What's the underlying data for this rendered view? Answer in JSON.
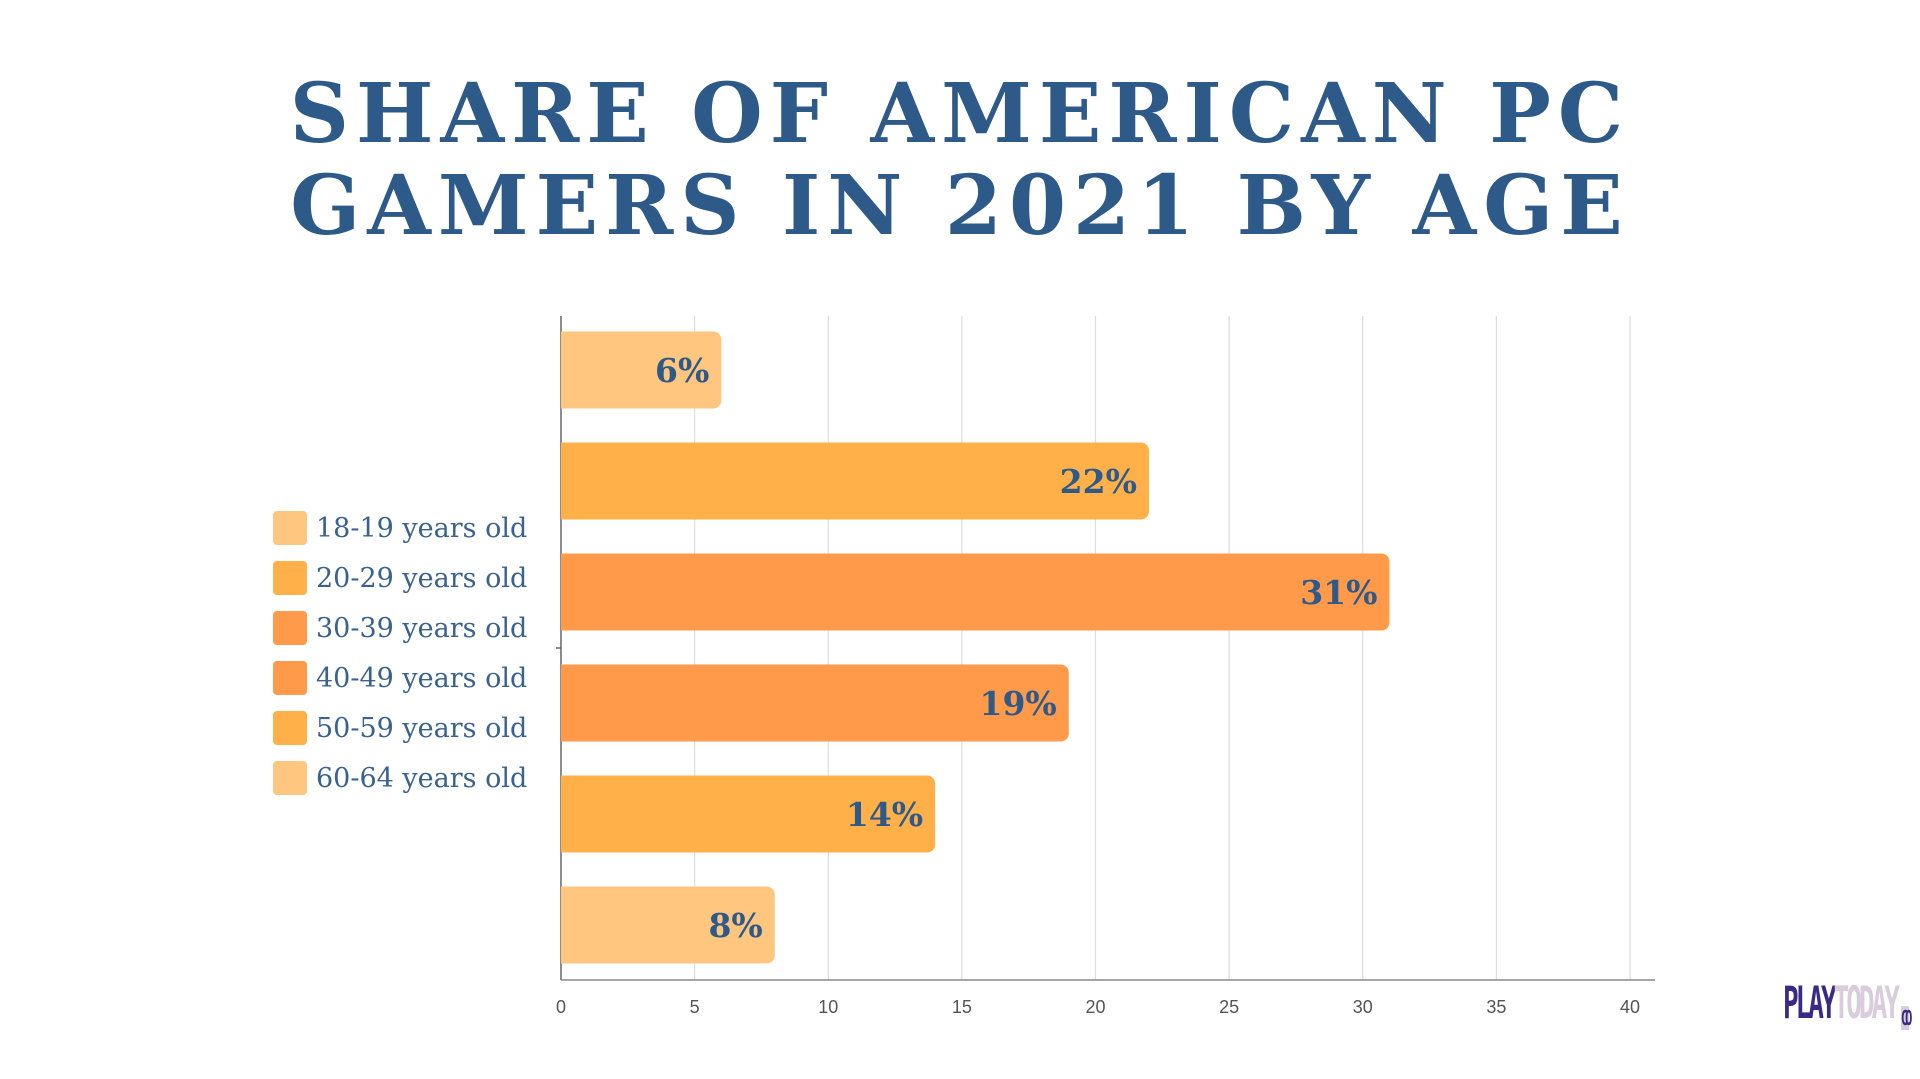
{
  "title_lines": [
    "SHARE OF AMERICAN PC",
    "GAMERS IN 2021 BY AGE"
  ],
  "logo": {
    "part1": "PLAY",
    "part2": "TODAY",
    "part3": "CO"
  },
  "chart_data": {
    "type": "bar",
    "orientation": "horizontal",
    "title": "SHARE OF AMERICAN PC GAMERS IN 2021 BY AGE",
    "categories": [
      "18-19 years old",
      "20-29 years old",
      "30-39 years old",
      "40-49 years old",
      "50-59 years old",
      "60-64 years old"
    ],
    "values": [
      6,
      22,
      31,
      19,
      14,
      8
    ],
    "data_labels": [
      "6%",
      "22%",
      "31%",
      "19%",
      "14%",
      "8%"
    ],
    "colors": [
      "#FFC680",
      "#FFB048",
      "#FF9A4A",
      "#FF9A4A",
      "#FFB048",
      "#FFC680"
    ],
    "xlim": [
      0,
      40
    ],
    "xticks": [
      0,
      5,
      10,
      15,
      20,
      25,
      30,
      35,
      40
    ],
    "xtick_labels": [
      "0",
      "5",
      "10",
      "15",
      "20",
      "25",
      "30",
      "35",
      "40"
    ],
    "grid": "vertical",
    "legend_placement": "left",
    "label_color": "#2E5A8A"
  }
}
